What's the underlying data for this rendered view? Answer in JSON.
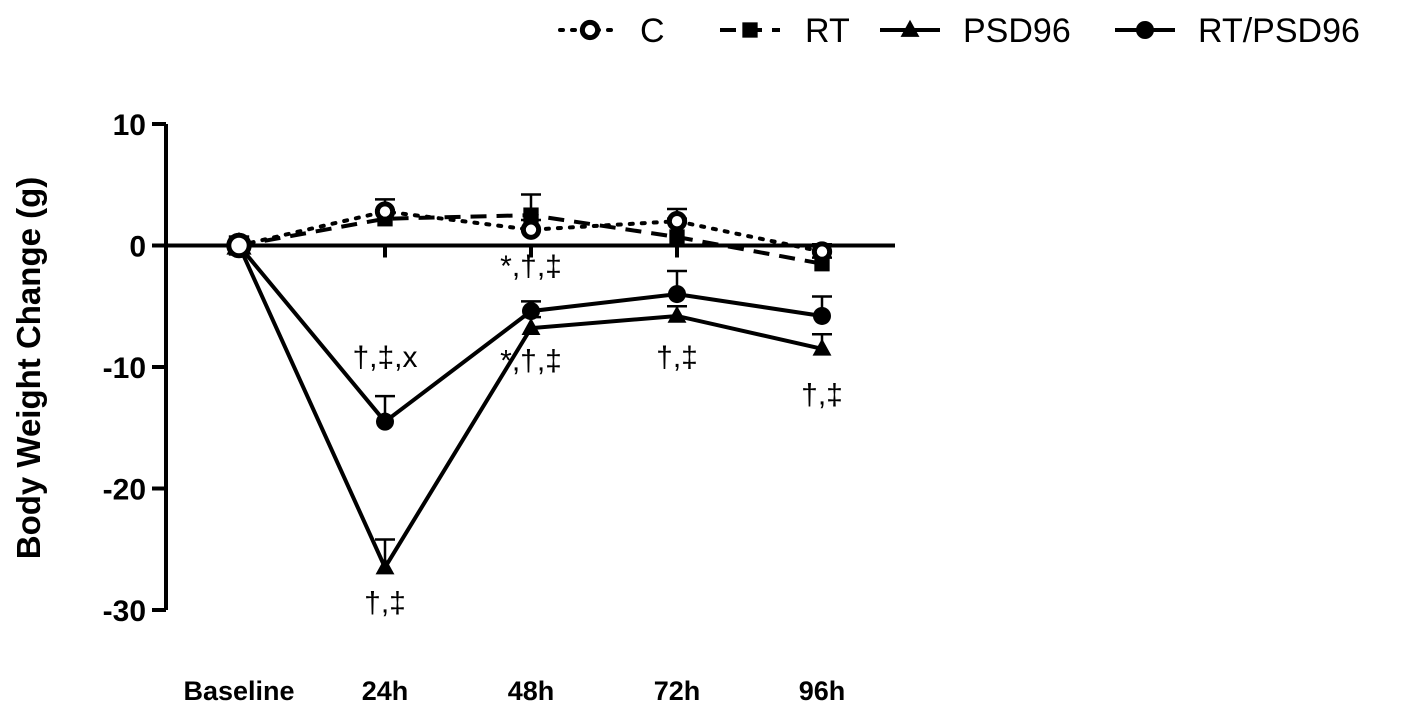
{
  "chart_data": {
    "type": "line",
    "title": "",
    "xlabel": "",
    "ylabel": "Body Weight Change (g)",
    "categories": [
      "Baseline",
      "24h",
      "48h",
      "72h",
      "96h"
    ],
    "ylim": [
      -30,
      10
    ],
    "yticks": [
      10,
      0,
      -10,
      -20,
      -30
    ],
    "grid": false,
    "zero_line": true,
    "legend_position": "top",
    "series": [
      {
        "name": "C",
        "values": [
          0,
          2.8,
          1.3,
          2.0,
          -0.5
        ],
        "error": [
          0,
          1.0,
          0.8,
          1.0,
          0.6
        ],
        "marker": "open-circle",
        "line": "dotted"
      },
      {
        "name": "RT",
        "values": [
          0,
          2.2,
          2.5,
          0.7,
          -1.5
        ],
        "error": [
          0,
          0.7,
          1.7,
          1.5,
          0.5
        ],
        "marker": "square",
        "line": "dashed"
      },
      {
        "name": "PSD96",
        "values": [
          0,
          -26.5,
          -6.8,
          -5.8,
          -8.5
        ],
        "error": [
          0,
          2.3,
          0.9,
          0.8,
          1.2
        ],
        "marker": "triangle",
        "line": "solid"
      },
      {
        "name": "RT/PSD96",
        "values": [
          0,
          -14.5,
          -5.4,
          -4.0,
          -5.8
        ],
        "error": [
          0,
          2.1,
          0.8,
          1.9,
          1.6
        ],
        "marker": "filled-circle",
        "line": "solid"
      }
    ],
    "annotations": [
      {
        "category": "24h",
        "y": -10,
        "text": "†,‡,x"
      },
      {
        "category": "24h",
        "y": -30.2,
        "text": "†,‡"
      },
      {
        "category": "48h",
        "y": -2.5,
        "text": "*,†,‡"
      },
      {
        "category": "48h",
        "y": -10.3,
        "text": "*,†,‡"
      },
      {
        "category": "72h",
        "y": -10,
        "text": "†,‡"
      },
      {
        "category": "96h",
        "y": -13.1,
        "text": "†,‡"
      }
    ]
  }
}
